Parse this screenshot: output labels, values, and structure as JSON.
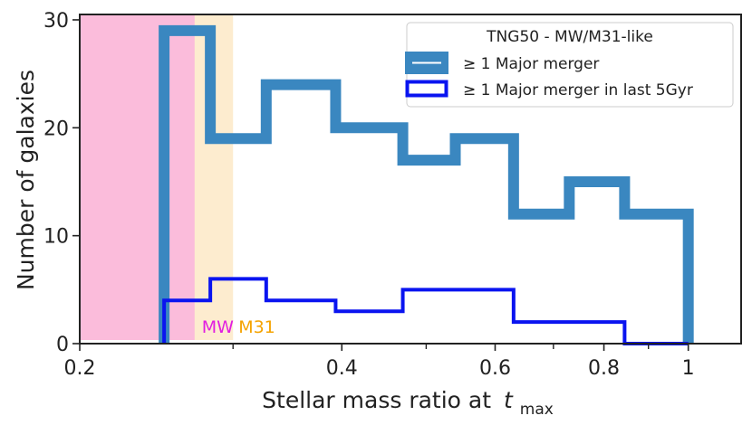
{
  "chart_data": {
    "type": "histogram",
    "title": "",
    "xlabel": "Stellar mass ratio at",
    "xlabel_var": "t",
    "xlabel_sub": "max",
    "ylabel": "Number of galaxies",
    "x_scale": "log",
    "xlim": [
      0.2,
      1.15
    ],
    "ylim": [
      0,
      30.5
    ],
    "x_ticks": [
      {
        "value": 0.2,
        "label": "0.2"
      },
      {
        "value": 0.4,
        "label": "0.4"
      },
      {
        "value": 0.6,
        "label": "0.6"
      },
      {
        "value": 0.8,
        "label": "0.8"
      },
      {
        "value": 1.0,
        "label": "1"
      }
    ],
    "x_minor_ticks": [
      0.3,
      0.5,
      0.7,
      0.9
    ],
    "y_ticks": [
      {
        "value": 0,
        "label": "0"
      },
      {
        "value": 10,
        "label": "10"
      },
      {
        "value": 20,
        "label": "20"
      },
      {
        "value": 30,
        "label": "30"
      }
    ],
    "bin_edges": [
      0.25,
      0.2825,
      0.3275,
      0.3935,
      0.47,
      0.54,
      0.63,
      0.73,
      0.845,
      1.0
    ],
    "series": [
      {
        "name": "≥ 1 Major merger",
        "color": "#3a87c0",
        "style": "thick-step",
        "values": [
          29,
          19,
          24,
          20,
          17,
          19,
          12,
          15,
          12
        ]
      },
      {
        "name": "≥ 1 Major merger in last 5Gyr",
        "color": "#0a14f0",
        "style": "thin-step",
        "values": [
          4,
          6,
          4,
          3,
          5,
          5,
          2,
          2,
          0
        ]
      }
    ],
    "shaded_regions": [
      {
        "label": "M31",
        "x_start": 0.2,
        "x_end": 0.3,
        "color": "#fdeccf",
        "label_color": "#f5a300"
      },
      {
        "label": "MW",
        "x_start": 0.2,
        "x_end": 0.271,
        "color": "#fbbcdb",
        "label_color": "#e11ee1"
      }
    ],
    "legend": {
      "position": "top-right",
      "title": "TNG50 - MW/M31-like"
    },
    "grid": false
  }
}
